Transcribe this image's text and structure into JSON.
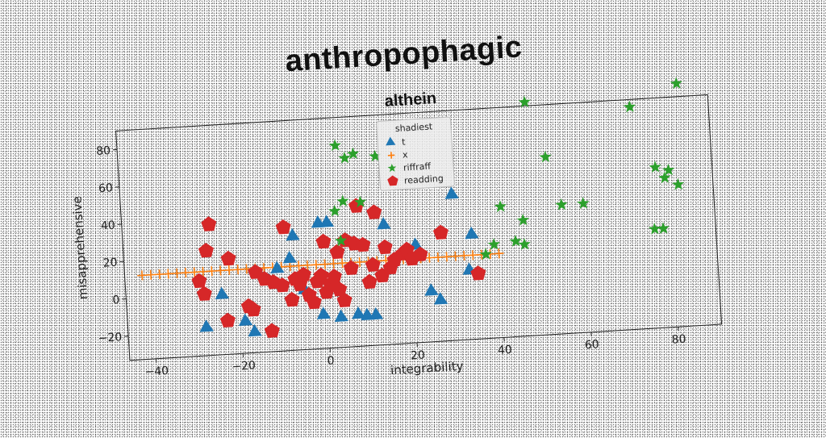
{
  "chart_data": {
    "type": "scatter",
    "suptitle": "anthropophagic",
    "title": "althein",
    "xlabel": "integrability",
    "ylabel": "misapprehensive",
    "xlim": [
      -46,
      90
    ],
    "ylim": [
      -33,
      90
    ],
    "xticks": [
      -40,
      -20,
      0,
      20,
      40,
      60,
      80
    ],
    "yticks": [
      -20,
      0,
      20,
      40,
      60,
      80
    ],
    "grid": false,
    "legend": {
      "title": "shadiest",
      "placement": "top-center"
    },
    "series": [
      {
        "name": "t",
        "marker": "triangle",
        "color": "#1f77b4",
        "points": [
          [
            -28,
            -18
          ],
          [
            -24,
            -1
          ],
          [
            -19,
            -16
          ],
          [
            -17,
            -22
          ],
          [
            -13,
            5
          ],
          [
            -11,
            11
          ],
          [
            -8,
            16
          ],
          [
            -7,
            28
          ],
          [
            -5,
            -1
          ],
          [
            -1,
            -15
          ],
          [
            -1,
            34
          ],
          [
            1,
            34
          ],
          [
            3,
            -17
          ],
          [
            7,
            -16
          ],
          [
            9,
            -17
          ],
          [
            11,
            -17
          ],
          [
            14,
            31
          ],
          [
            21,
            19
          ],
          [
            24,
            -6
          ],
          [
            26,
            -11
          ],
          [
            30,
            45
          ],
          [
            33,
            4
          ],
          [
            34,
            23
          ]
        ]
      },
      {
        "name": "x",
        "marker": "plus",
        "color": "#ff7f0e",
        "points": [
          [
            -42,
            12
          ],
          [
            -40,
            12
          ],
          [
            -38,
            12
          ],
          [
            -36,
            12
          ],
          [
            -34,
            12
          ],
          [
            -32,
            12
          ],
          [
            -30,
            12
          ],
          [
            -28,
            12
          ],
          [
            -26,
            12
          ],
          [
            -24,
            12
          ],
          [
            -22,
            12
          ],
          [
            -20,
            12
          ],
          [
            -18,
            12
          ],
          [
            -16,
            12
          ],
          [
            -14,
            12
          ],
          [
            -12,
            12
          ],
          [
            -10,
            12
          ],
          [
            -8,
            12
          ],
          [
            -6,
            12
          ],
          [
            -4,
            12
          ],
          [
            -2,
            12
          ],
          [
            0,
            12
          ],
          [
            2,
            12
          ],
          [
            4,
            12
          ],
          [
            6,
            12
          ],
          [
            8,
            12
          ],
          [
            10,
            12
          ],
          [
            12,
            12
          ],
          [
            14,
            12
          ],
          [
            16,
            12
          ],
          [
            18,
            12
          ],
          [
            20,
            12
          ],
          [
            22,
            12
          ],
          [
            24,
            12
          ],
          [
            26,
            12
          ],
          [
            28,
            12
          ],
          [
            30,
            12
          ],
          [
            32,
            12
          ],
          [
            34,
            12
          ],
          [
            36,
            12
          ],
          [
            38,
            12
          ],
          [
            40,
            12
          ]
        ]
      },
      {
        "name": "riffraff",
        "marker": "star",
        "color": "#2ca02c",
        "points": [
          [
            3,
            40
          ],
          [
            4,
            75
          ],
          [
            5,
            45
          ],
          [
            6,
            68
          ],
          [
            8,
            70
          ],
          [
            9,
            44
          ],
          [
            13,
            68
          ],
          [
            41,
            37
          ],
          [
            44,
            18
          ],
          [
            46,
            16
          ],
          [
            46,
            29
          ],
          [
            48,
            92
          ],
          [
            52,
            62
          ],
          [
            55,
            36
          ],
          [
            60,
            36
          ],
          [
            72,
            86
          ],
          [
            76,
            20
          ],
          [
            77,
            53
          ],
          [
            78,
            20
          ],
          [
            79,
            47
          ],
          [
            80,
            51
          ],
          [
            82,
            43
          ],
          [
            83,
            97
          ],
          [
            39,
            17
          ],
          [
            37,
            12
          ],
          [
            4,
            24
          ]
        ]
      },
      {
        "name": "readding",
        "marker": "pentagon",
        "color": "#d62728",
        "points": [
          [
            -29,
            7
          ],
          [
            -28,
            0
          ],
          [
            -27,
            23
          ],
          [
            -26,
            37
          ],
          [
            -23,
            -15
          ],
          [
            -22,
            18
          ],
          [
            -18,
            -8
          ],
          [
            -17,
            -10
          ],
          [
            -16,
            10
          ],
          [
            -14,
            6
          ],
          [
            -13,
            -22
          ],
          [
            -12,
            4
          ],
          [
            -10,
            2
          ],
          [
            -9,
            33
          ],
          [
            -8,
            -6
          ],
          [
            -7,
            5
          ],
          [
            -6,
            2
          ],
          [
            -5,
            7
          ],
          [
            -4,
            -4
          ],
          [
            -3,
            -8
          ],
          [
            -2,
            3
          ],
          [
            -1,
            6
          ],
          [
            0,
            24
          ],
          [
            0,
            -3
          ],
          [
            1,
            1
          ],
          [
            2,
            5
          ],
          [
            3,
            -2
          ],
          [
            3,
            18
          ],
          [
            4,
            -8
          ],
          [
            5,
            24
          ],
          [
            6,
            9
          ],
          [
            7,
            22
          ],
          [
            8,
            42
          ],
          [
            9,
            21
          ],
          [
            10,
            1
          ],
          [
            11,
            10
          ],
          [
            12,
            38
          ],
          [
            13,
            4
          ],
          [
            14,
            19
          ],
          [
            15,
            8
          ],
          [
            16,
            12
          ],
          [
            18,
            15
          ],
          [
            19,
            17
          ],
          [
            20,
            12
          ],
          [
            22,
            14
          ],
          [
            27,
            25
          ],
          [
            35,
            2
          ]
        ]
      }
    ]
  }
}
